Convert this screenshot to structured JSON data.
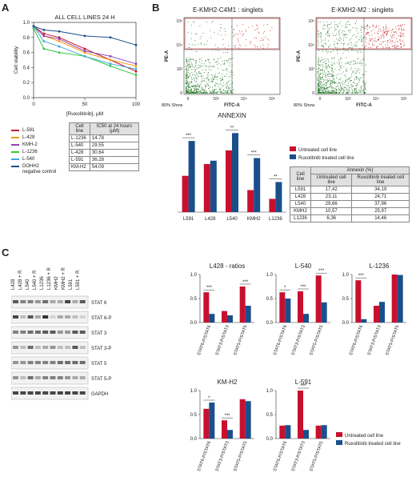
{
  "panels": {
    "A": "A",
    "B": "B",
    "C": "C"
  },
  "colors": {
    "red": "#c8102e",
    "blue": "#1a4f8b"
  },
  "panelA": {
    "legend": [
      {
        "name": "L-591",
        "color": "#c8102e"
      },
      {
        "name": "L-428",
        "color": "#f39c12"
      },
      {
        "name": "KMH-2",
        "color": "#8e44ad"
      },
      {
        "name": "L-1236",
        "color": "#2ecc40"
      },
      {
        "name": "L-540",
        "color": "#3fa7d6"
      },
      {
        "name": "DOHH2",
        "color": "#1a4f8b"
      }
    ],
    "legend_note": "negative control",
    "table_header": [
      "Cell line",
      "IC50 at 24 hours (µM)"
    ],
    "table_rows": [
      [
        "L-1236",
        "14.78"
      ],
      [
        "L-540",
        "29.55"
      ],
      [
        "L-428",
        "30.64"
      ],
      [
        "L-591",
        "36.28"
      ],
      [
        "KM-H2",
        "54.09"
      ]
    ]
  },
  "panelB": {
    "flow1_title": "E-KMH2-C4M1 : singlets",
    "flow2_title": "E-KMH2-M2 : singlets",
    "flow_x": "FITC-A",
    "flow_y": "PE-A",
    "flow_show": "80% Show",
    "flow_ticks_x": [
      "0",
      "10³",
      "10⁴",
      "10⁵"
    ],
    "flow_ticks_y": [
      "10⁵",
      "10⁴",
      "10³",
      "0"
    ],
    "legend": [
      "Untreated cell line",
      "Ruxolitinib treated cell line"
    ],
    "table_header": [
      "Cell line",
      "Annexin (%)"
    ],
    "table_sub": [
      "Untreated cell line",
      "Ruxolitinib treated cell line"
    ],
    "table_rows": [
      [
        "L591",
        "17,42",
        "34,19"
      ],
      [
        "L428",
        "23,11",
        "24,71"
      ],
      [
        "L540",
        "29,66",
        "37,96"
      ],
      [
        "KMH2",
        "10,57",
        "25,97"
      ],
      [
        "L1236",
        "6,36",
        "14,46"
      ]
    ]
  },
  "panelC": {
    "lanes": [
      "L428",
      "L428 + R",
      "L540",
      "L540 + R",
      "L1236",
      "L1236 + R",
      "KMH2",
      "KMH2 + R",
      "L591",
      "L591 + R"
    ],
    "bands": [
      "STAT 6",
      "STAT 6-P",
      "STAT 3",
      "STAT 3-P",
      "STAT 5",
      "STAT 5-P",
      "GAPDH"
    ],
    "legend": [
      "Untreated cell line",
      "Ruxolitinib treated cell line"
    ]
  },
  "chart_data": [
    {
      "type": "line",
      "title": "ALL CELL LINES 24 H",
      "xlabel": "[Ruxolitinib], µM",
      "ylabel": "Cell viability",
      "xlim": [
        0,
        100
      ],
      "ylim": [
        0,
        1.0
      ],
      "x": [
        0,
        10,
        25,
        50,
        75,
        100
      ],
      "xticks": [
        0,
        50,
        100
      ],
      "yticks": [
        0.0,
        0.2,
        0.4,
        0.6,
        0.8,
        1.0
      ],
      "series": [
        {
          "name": "L-591",
          "values": [
            0.95,
            0.85,
            0.8,
            0.65,
            0.5,
            0.35
          ]
        },
        {
          "name": "L-428",
          "values": [
            0.95,
            0.82,
            0.75,
            0.6,
            0.5,
            0.42
          ]
        },
        {
          "name": "KMH-2",
          "values": [
            0.95,
            0.82,
            0.78,
            0.62,
            0.55,
            0.45
          ]
        },
        {
          "name": "L-1236",
          "values": [
            0.92,
            0.65,
            0.6,
            0.55,
            0.42,
            0.3
          ]
        },
        {
          "name": "L-540",
          "values": [
            0.95,
            0.75,
            0.68,
            0.55,
            0.45,
            0.38
          ]
        },
        {
          "name": "DOHH2",
          "values": [
            0.95,
            0.9,
            0.88,
            0.82,
            0.8,
            0.7
          ]
        }
      ]
    },
    {
      "type": "bar",
      "title": "ANNEXIN",
      "categories": [
        "L591",
        "L428",
        "L540",
        "KMH2",
        "L1236"
      ],
      "ylim": [
        0,
        40
      ],
      "series": [
        {
          "name": "Untreated cell line",
          "values": [
            17.42,
            23.11,
            29.66,
            10.57,
            6.36
          ]
        },
        {
          "name": "Ruxolitinib treated cell line",
          "values": [
            34.19,
            24.71,
            37.96,
            25.97,
            14.46
          ]
        }
      ],
      "sig": [
        "***",
        "",
        "**",
        "***",
        "**"
      ]
    },
    {
      "type": "bar",
      "title": "L428 - ratios",
      "ylim": [
        0,
        1.0
      ],
      "yticks": [
        "0.0",
        "0.5",
        "1.0"
      ],
      "categories": [
        "STAT6-P/STAT6",
        "STAT3-P/STAT3",
        "STAT5-P/STAT5"
      ],
      "series": [
        {
          "values": [
            0.63,
            0.24,
            0.75
          ]
        },
        {
          "values": [
            0.18,
            0.15,
            0.35
          ]
        }
      ],
      "sig": [
        "***",
        "",
        "***"
      ]
    },
    {
      "type": "bar",
      "title": "L-540",
      "ylim": [
        0,
        1.0
      ],
      "yticks": [
        "0.0",
        "0.5",
        "1.0"
      ],
      "categories": [
        "STAT6-P/STAT6",
        "STAT3-P/STAT3",
        "STAT5-P/STAT5"
      ],
      "series": [
        {
          "values": [
            0.63,
            0.65,
            0.98
          ]
        },
        {
          "values": [
            0.5,
            0.18,
            0.42
          ]
        }
      ],
      "sig": [
        "*",
        "***",
        "***"
      ]
    },
    {
      "type": "bar",
      "title": "L-1236",
      "ylim": [
        0,
        1.0
      ],
      "yticks": [
        "0.0",
        "0.5",
        "1.0"
      ],
      "categories": [
        "STAT6-P/STAT6",
        "STAT3-P/STAT3",
        "STAT5-P/STAT5"
      ],
      "series": [
        {
          "values": [
            0.88,
            0.35,
            1.0
          ]
        },
        {
          "values": [
            0.07,
            0.43,
            0.99
          ]
        }
      ],
      "sig": [
        "***",
        "",
        ""
      ]
    },
    {
      "type": "bar",
      "title": "KM-H2",
      "ylim": [
        0,
        1.0
      ],
      "yticks": [
        "0.0",
        "0.5",
        "1.0"
      ],
      "categories": [
        "STAT6-P/STAT6",
        "STAT3-P/STAT3",
        "STAT5-P/STAT5"
      ],
      "series": [
        {
          "values": [
            0.62,
            0.38,
            0.82
          ]
        },
        {
          "values": [
            0.75,
            0.18,
            0.78
          ]
        }
      ],
      "sig": [
        "*",
        "***",
        ""
      ]
    },
    {
      "type": "bar",
      "title": "L-591",
      "ylim": [
        0,
        1.0
      ],
      "yticks": [
        "0.0",
        "0.5",
        "1.0"
      ],
      "categories": [
        "STAT6-P/STAT6",
        "STAT3-P/STAT3",
        "STAT5-P/STAT5"
      ],
      "series": [
        {
          "values": [
            0.27,
            1.0,
            0.27
          ]
        },
        {
          "values": [
            0.28,
            0.18,
            0.28
          ]
        }
      ],
      "sig": [
        "",
        "***",
        ""
      ]
    }
  ]
}
